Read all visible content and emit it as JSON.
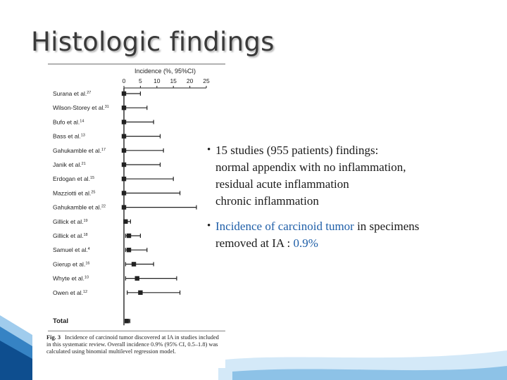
{
  "slide": {
    "title": "Histologic findings",
    "bullets": [
      {
        "lines": [
          "15 studies (955 patients) findings:",
          "normal appendix with no inflammation,",
          "residual acute inflammation",
          "chronic inflammation"
        ]
      },
      {
        "line1_highlight": "Incidence of carcinoid tumor",
        "line1_rest": " in specimens",
        "line2_prefix": "removed at IA : ",
        "line2_value": "0.9%"
      }
    ],
    "accent_color": "#1f5fa8"
  },
  "figure": {
    "caption_label": "Fig. 3",
    "caption_text": "Incidence of carcinoid tumor discovered at IA in studies included in this systematic review. Overall incidence 0.9% (95% CI, 0.5–1.8) was calculated using binomial multilevel regression model."
  },
  "chart_data": {
    "type": "forest",
    "xlabel": "Incidence (%, 95%CI)",
    "xlim": [
      0,
      25
    ],
    "xticks": [
      0,
      5,
      10,
      15,
      20,
      25
    ],
    "studies": [
      {
        "label": "Surana et al.",
        "ref": "27",
        "estimate": 0,
        "lo": 0,
        "hi": 5
      },
      {
        "label": "Wilson-Storey et al.",
        "ref": "31",
        "estimate": 0,
        "lo": 0,
        "hi": 7
      },
      {
        "label": "Bufo et al.",
        "ref": "14",
        "estimate": 0,
        "lo": 0,
        "hi": 9
      },
      {
        "label": "Bass et al.",
        "ref": "13",
        "estimate": 0,
        "lo": 0,
        "hi": 11
      },
      {
        "label": "Gahukamble et al.",
        "ref": "17",
        "estimate": 0,
        "lo": 0,
        "hi": 12
      },
      {
        "label": "Janik et al.",
        "ref": "21",
        "estimate": 0,
        "lo": 0,
        "hi": 11
      },
      {
        "label": "Erdogan et al.",
        "ref": "15",
        "estimate": 0,
        "lo": 0,
        "hi": 15
      },
      {
        "label": "Mazziotti et al.",
        "ref": "25",
        "estimate": 0,
        "lo": 0,
        "hi": 17
      },
      {
        "label": "Gahukamble et al.",
        "ref": "22",
        "estimate": 0,
        "lo": 0,
        "hi": 22
      },
      {
        "label": "Gillick et al.",
        "ref": "19",
        "estimate": 0.5,
        "lo": 0,
        "hi": 2
      },
      {
        "label": "Gillick et al.",
        "ref": "18",
        "estimate": 1.5,
        "lo": 0.5,
        "hi": 5
      },
      {
        "label": "Samuel et al.",
        "ref": "4",
        "estimate": 1.5,
        "lo": 0.5,
        "hi": 7
      },
      {
        "label": "Gierup et al.",
        "ref": "16",
        "estimate": 3,
        "lo": 0.5,
        "hi": 9
      },
      {
        "label": "Whyte et al.",
        "ref": "10",
        "estimate": 4,
        "lo": 0.5,
        "hi": 16
      },
      {
        "label": "Owen et al.",
        "ref": "12",
        "estimate": 5,
        "lo": 1,
        "hi": 17
      }
    ],
    "total": {
      "label": "Total",
      "estimate": 0.9,
      "lo": 0.5,
      "hi": 1.8
    }
  }
}
